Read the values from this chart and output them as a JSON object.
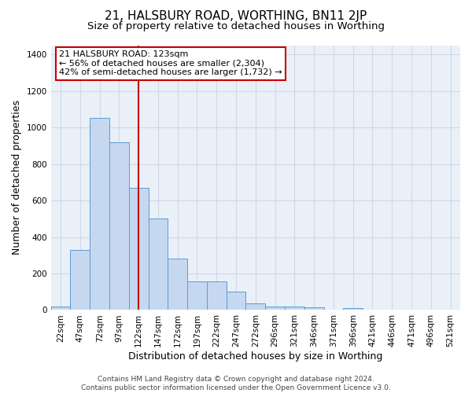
{
  "title1": "21, HALSBURY ROAD, WORTHING, BN11 2JP",
  "title2": "Size of property relative to detached houses in Worthing",
  "xlabel": "Distribution of detached houses by size in Worthing",
  "ylabel": "Number of detached properties",
  "categories": [
    "22sqm",
    "47sqm",
    "72sqm",
    "97sqm",
    "122sqm",
    "147sqm",
    "172sqm",
    "197sqm",
    "222sqm",
    "247sqm",
    "272sqm",
    "296sqm",
    "321sqm",
    "346sqm",
    "371sqm",
    "396sqm",
    "421sqm",
    "446sqm",
    "471sqm",
    "496sqm",
    "521sqm"
  ],
  "values": [
    18,
    330,
    1050,
    920,
    670,
    500,
    280,
    155,
    155,
    100,
    35,
    20,
    20,
    15,
    0,
    10,
    0,
    0,
    0,
    0,
    0
  ],
  "bar_color": "#c5d8f0",
  "bar_edge_color": "#5b9bd5",
  "vline_x_index": 4,
  "vline_color": "#cc0000",
  "annotation_line1": "21 HALSBURY ROAD: 123sqm",
  "annotation_line2": "← 56% of detached houses are smaller (2,304)",
  "annotation_line3": "42% of semi-detached houses are larger (1,732) →",
  "annotation_box_color": "#ffffff",
  "annotation_box_edge": "#cc0000",
  "ylim": [
    0,
    1450
  ],
  "yticks": [
    0,
    200,
    400,
    600,
    800,
    1000,
    1200,
    1400
  ],
  "grid_color": "#d0d8e8",
  "bg_color": "#eaf0f8",
  "footnote": "Contains HM Land Registry data © Crown copyright and database right 2024.\nContains public sector information licensed under the Open Government Licence v3.0.",
  "title1_fontsize": 11,
  "title2_fontsize": 9.5,
  "xlabel_fontsize": 9,
  "ylabel_fontsize": 9,
  "tick_fontsize": 7.5,
  "annot_fontsize": 8,
  "footnote_fontsize": 6.5
}
